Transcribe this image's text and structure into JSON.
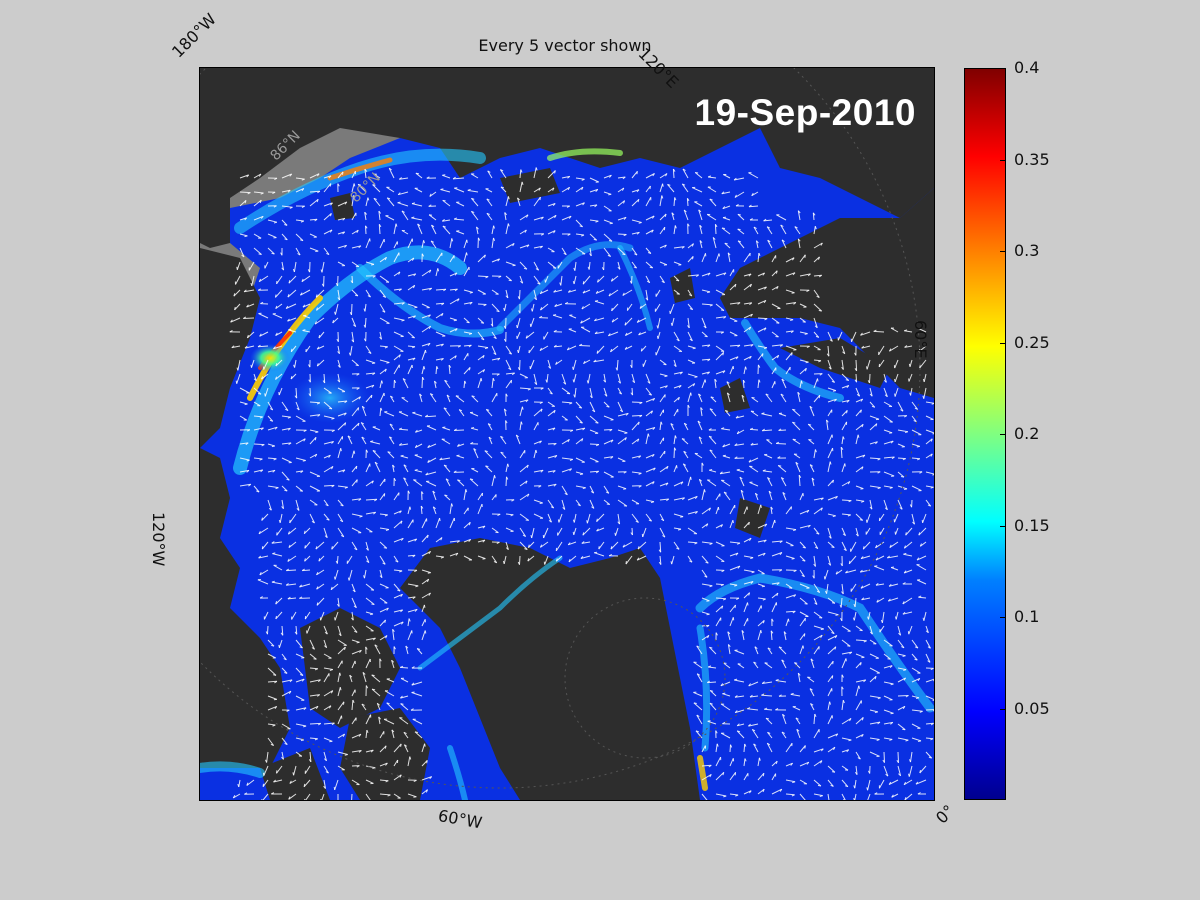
{
  "title": "Every 5 vector shown",
  "date": "19-Sep-2010",
  "coordinate_labels": {
    "lon_180w": "180°W",
    "lon_120e": "120°E",
    "lon_60e": "60°E",
    "lon_120w": "120°W",
    "lon_60w": "60°W",
    "lon_0": "0°",
    "lat_86n": "86°N",
    "lat_80n": "80°N"
  },
  "colorbar": {
    "min": 0,
    "max": 0.4,
    "colormap": "jet",
    "ticks": [
      "0.4",
      "0.35",
      "0.3",
      "0.25",
      "0.2",
      "0.15",
      "0.1",
      "0.05"
    ],
    "tick_values": [
      0.4,
      0.35,
      0.3,
      0.25,
      0.2,
      0.15,
      0.1,
      0.05
    ]
  },
  "colors": {
    "background": "#cccccc",
    "land": "#333333",
    "land_outer": "#808080",
    "ocean_low": "#0a32e6",
    "vector": "#ffffff"
  }
}
